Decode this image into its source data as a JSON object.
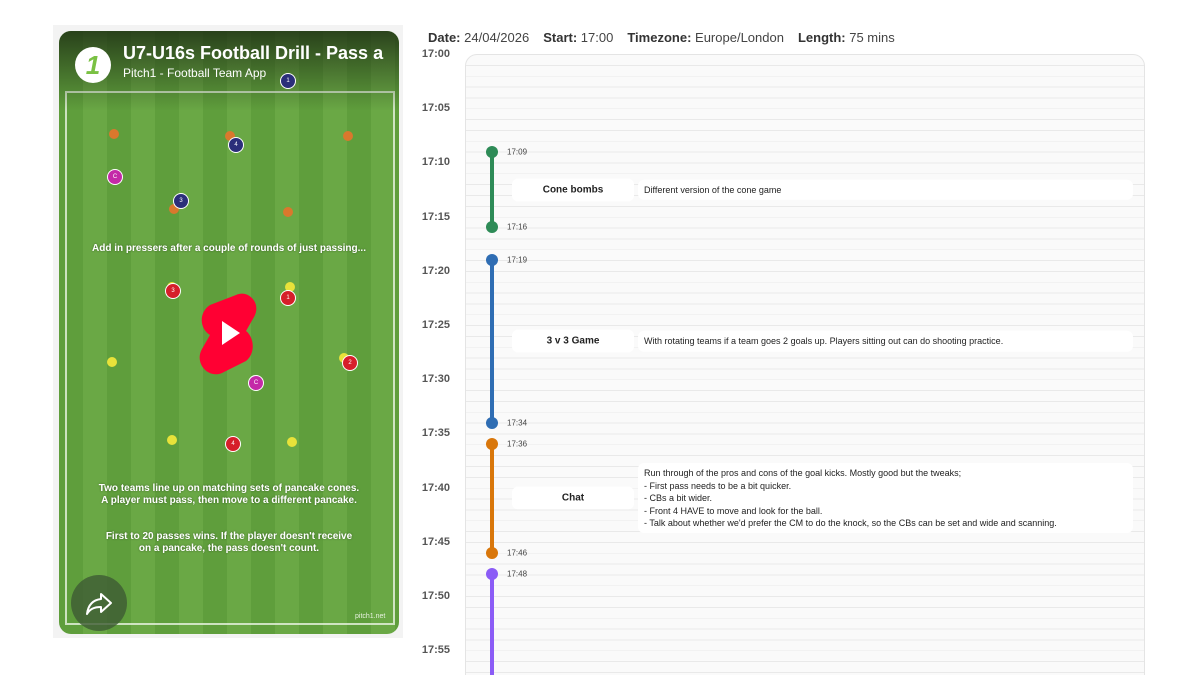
{
  "video": {
    "logo": "1",
    "title": "U7-U16s Football Drill - Pass a",
    "channel": "Pitch1 - Football Team App",
    "players": [
      "1",
      "4",
      "C",
      "3",
      "3",
      "1",
      "2",
      "C",
      "4"
    ],
    "captions": [
      [
        "Add in pressers after a couple of rounds of just passing..."
      ],
      [
        "Two teams line up on matching sets of pancake cones.",
        "A player must pass, then move to a different pancake."
      ],
      [
        "First to 20 passes wins. If the player doesn't receive",
        "on a pancake, the pass doesn't count."
      ]
    ],
    "watermark": "pitch1.net"
  },
  "meta": [
    {
      "label": "Date:",
      "value": "24/04/2026"
    },
    {
      "label": "Start:",
      "value": "17:00"
    },
    {
      "label": "Timezone:",
      "value": "Europe/London"
    },
    {
      "label": "Length:",
      "value": "75 mins"
    }
  ],
  "timeline": {
    "ticks": [
      "17:00",
      "17:05",
      "17:10",
      "17:15",
      "17:20",
      "17:25",
      "17:30",
      "17:35",
      "17:40",
      "17:45",
      "17:50",
      "17:55"
    ],
    "activities": [
      {
        "start": "17:09",
        "end": "17:16",
        "color": "#2e8b57",
        "name": "Cone bombs",
        "description": [
          "Different version of the cone game"
        ]
      },
      {
        "start": "17:19",
        "end": "17:34",
        "color": "#2f6db3",
        "name": "3 v 3 Game",
        "description": [
          "With rotating teams if a team goes 2 goals up. Players sitting out can do shooting practice."
        ]
      },
      {
        "start": "17:36",
        "end": "17:46",
        "color": "#d9770b",
        "name": "Chat",
        "description": [
          "Run through of the pros and cons of the goal kicks. Mostly good but the tweaks;",
          "- First pass needs to be a bit quicker.",
          "- CBs a bit wider.",
          "- Front 4 HAVE to move and look for the ball.",
          "- Talk about whether we'd prefer the CM to do the knock, so the CBs can be set and wide and scanning."
        ]
      },
      {
        "start": "17:48",
        "end": null,
        "color": "#8b5cf6",
        "name": null,
        "description": null
      }
    ]
  }
}
